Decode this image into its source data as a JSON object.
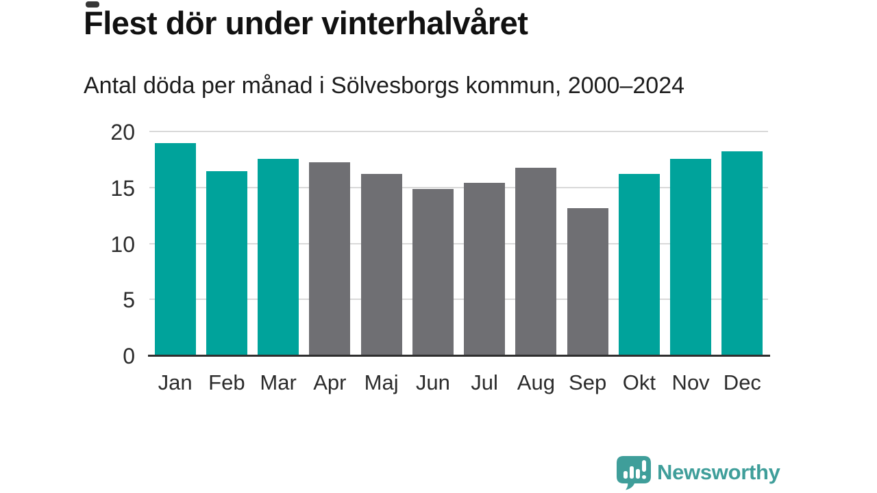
{
  "chart_data": {
    "type": "bar",
    "title": "Flest dör under vinterhalvåret",
    "subtitle": "Antal döda per månad i Sölvesborgs kommun, 2000–2024",
    "categories": [
      "Jan",
      "Feb",
      "Mar",
      "Apr",
      "Maj",
      "Jun",
      "Jul",
      "Aug",
      "Sep",
      "Okt",
      "Nov",
      "Dec"
    ],
    "values": [
      19.0,
      16.5,
      17.6,
      17.3,
      16.3,
      14.9,
      15.5,
      16.8,
      13.2,
      16.3,
      17.6,
      18.3
    ],
    "bar_color_keys": [
      "winter",
      "winter",
      "winter",
      "summer",
      "summer",
      "summer",
      "summer",
      "summer",
      "summer",
      "winter",
      "winter",
      "winter"
    ],
    "xlabel": "",
    "ylabel": "",
    "yticks": [
      0,
      5,
      10,
      15,
      20
    ],
    "ylim": [
      0,
      20
    ],
    "grid": "horizontal",
    "legend": "none"
  },
  "colors": {
    "winter_bar": "#00a39b",
    "summer_bar": "#6f6f73",
    "gridline": "#d9d9d9",
    "axis_line": "#2e2e2e",
    "title_text": "#111111",
    "subtitle_text": "#1c1c1c",
    "tick_text": "#2b2b2b",
    "logo": "#3f9e9a",
    "logo_glyph": "#ffffff",
    "background": "#ffffff"
  },
  "logo": {
    "text": "Newsworthy",
    "icon": "speech-bubble-bar-chart-icon"
  }
}
